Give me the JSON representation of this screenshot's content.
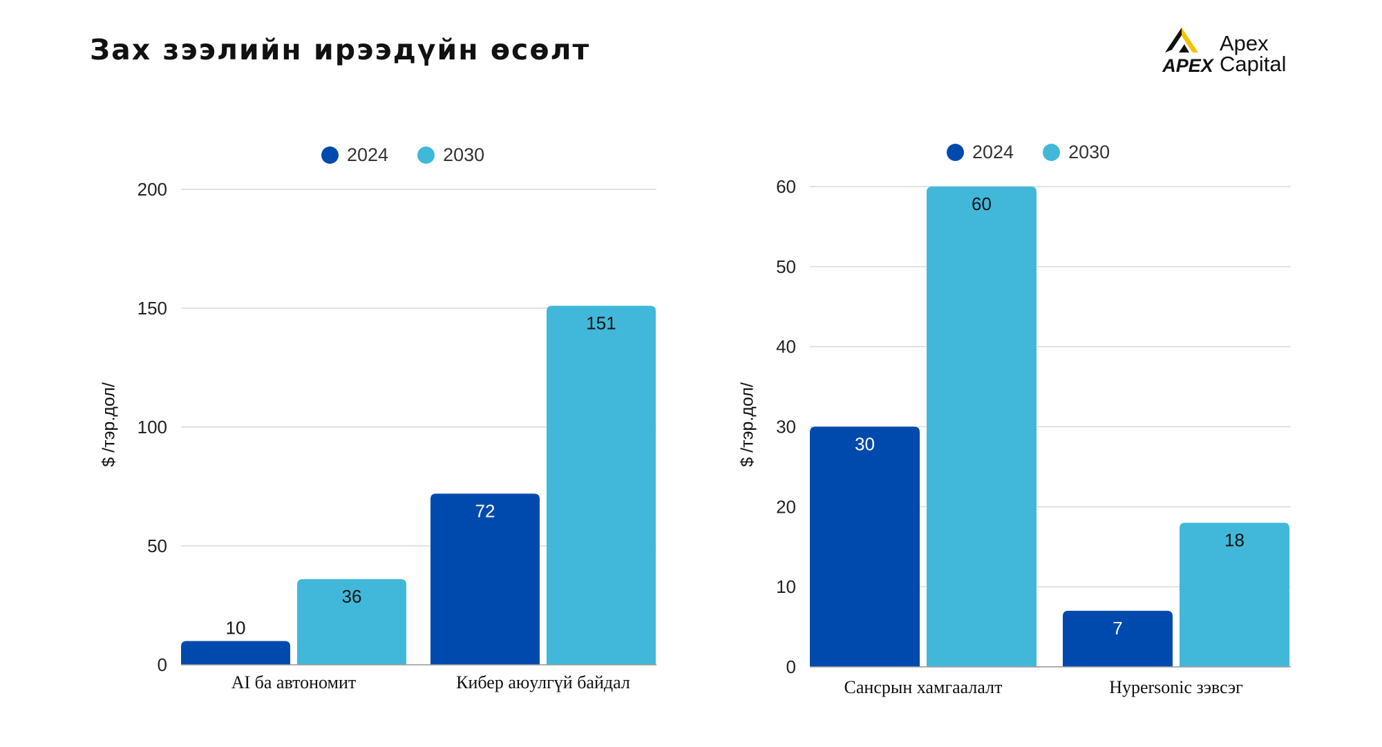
{
  "title": "Зах зээлийн ирээдүйн өсөлт",
  "logo": {
    "mark_text": "APEX",
    "line1": "Apex",
    "line2": "Capital"
  },
  "colors": {
    "series_2024": "#004aad",
    "series_2030": "#41b8d9",
    "grid": "#d9d9d9",
    "label_dark": "#111111",
    "label_light": "#ffffff",
    "logo_accent": "#f2c200"
  },
  "chart_data": [
    {
      "type": "bar",
      "ylabel": "$ /тэр.дол/",
      "ylim": [
        0,
        200
      ],
      "yticks": [
        0,
        50,
        100,
        150,
        200
      ],
      "categories": [
        "AI ба автономит",
        "Кибер аюулгүй байдал"
      ],
      "series": [
        {
          "name": "2024",
          "values": [
            10,
            72
          ]
        },
        {
          "name": "2030",
          "values": [
            36,
            151
          ]
        }
      ],
      "legend": "top",
      "grid": true
    },
    {
      "type": "bar",
      "ylabel": "$ /тэр.дол/",
      "ylim": [
        0,
        60
      ],
      "yticks": [
        0,
        10,
        20,
        30,
        40,
        50,
        60
      ],
      "categories": [
        "Сансрын хамгаалалт",
        "Hypersonic зэвсэг"
      ],
      "series": [
        {
          "name": "2024",
          "values": [
            30,
            7
          ]
        },
        {
          "name": "2030",
          "values": [
            60,
            18
          ]
        }
      ],
      "legend": "top",
      "grid": true
    }
  ]
}
